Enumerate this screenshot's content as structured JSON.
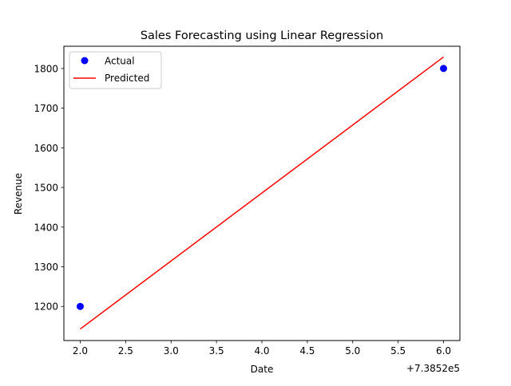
{
  "chart_data": {
    "type": "scatter+line",
    "title": "Sales Forecasting using Linear Regression",
    "xlabel": "Date",
    "ylabel": "Revenue",
    "x_offset_label": "+7.3852e5",
    "xlim": [
      1.82,
      6.18
    ],
    "ylim": [
      1114,
      1856
    ],
    "x_ticks": [
      2.0,
      2.5,
      3.0,
      3.5,
      4.0,
      4.5,
      5.0,
      5.5,
      6.0
    ],
    "x_tick_labels": [
      "2.0",
      "2.5",
      "3.0",
      "3.5",
      "4.0",
      "4.5",
      "5.0",
      "5.5",
      "6.0"
    ],
    "y_ticks": [
      1200,
      1300,
      1400,
      1500,
      1600,
      1700,
      1800
    ],
    "y_tick_labels": [
      "1200",
      "1300",
      "1400",
      "1500",
      "1600",
      "1700",
      "1800"
    ],
    "grid": false,
    "legend_position": "top-left",
    "series": [
      {
        "name": "Actual",
        "kind": "scatter",
        "color": "#0000ff",
        "x": [
          2.0,
          6.0
        ],
        "y": [
          1200,
          1800
        ]
      },
      {
        "name": "Predicted",
        "kind": "line",
        "color": "#ff0000",
        "x": [
          2.0,
          6.0
        ],
        "y": [
          1143,
          1829
        ]
      }
    ]
  }
}
